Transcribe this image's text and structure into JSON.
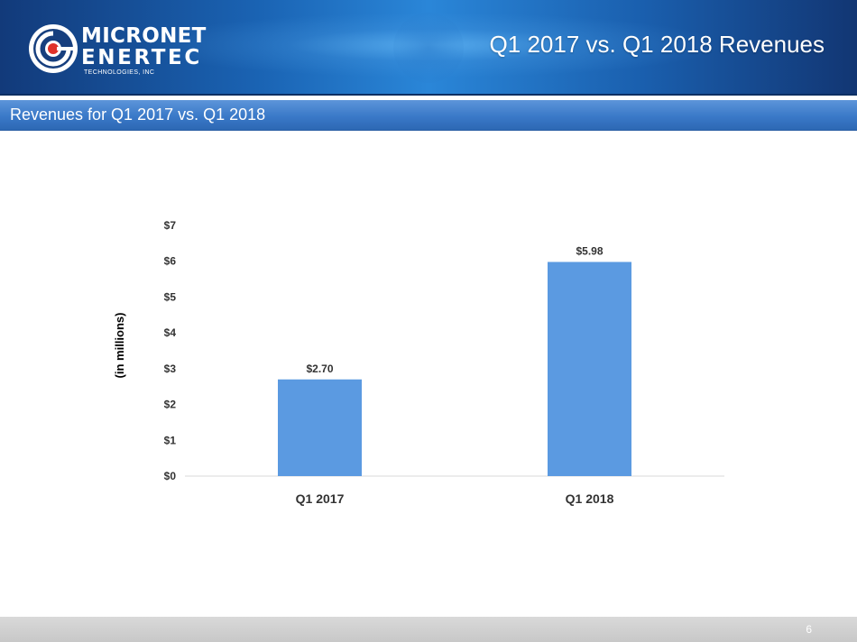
{
  "header": {
    "logo": {
      "line1": "MICRONET",
      "line2": "ENERTEC",
      "line3": "TECHNOLOGIES, INC"
    },
    "title": "Q1 2017 vs. Q1 2018 Revenues"
  },
  "subtitle": "Revenues for Q1 2017 vs. Q1 2018",
  "chart_data": {
    "type": "bar",
    "title": "",
    "xlabel": "",
    "ylabel": "(in millions)",
    "categories": [
      "Q1 2017",
      "Q1 2018"
    ],
    "values": [
      2.7,
      5.98
    ],
    "data_labels": [
      "$2.70",
      "$5.98"
    ],
    "ylim": [
      0,
      7
    ],
    "yticks": [
      0,
      1,
      2,
      3,
      4,
      5,
      6,
      7
    ],
    "ytick_labels": [
      "$0",
      "$1",
      "$2",
      "$3",
      "$4",
      "$5",
      "$6",
      "$7"
    ],
    "bar_color": "#5b9ae1",
    "grid": false,
    "legend": "none"
  },
  "footer": {
    "page_number": "6"
  },
  "colors": {
    "header_blue": "#1a63b3",
    "subtitle_blue": "#3a79c8",
    "logo_red": "#e0322a"
  }
}
